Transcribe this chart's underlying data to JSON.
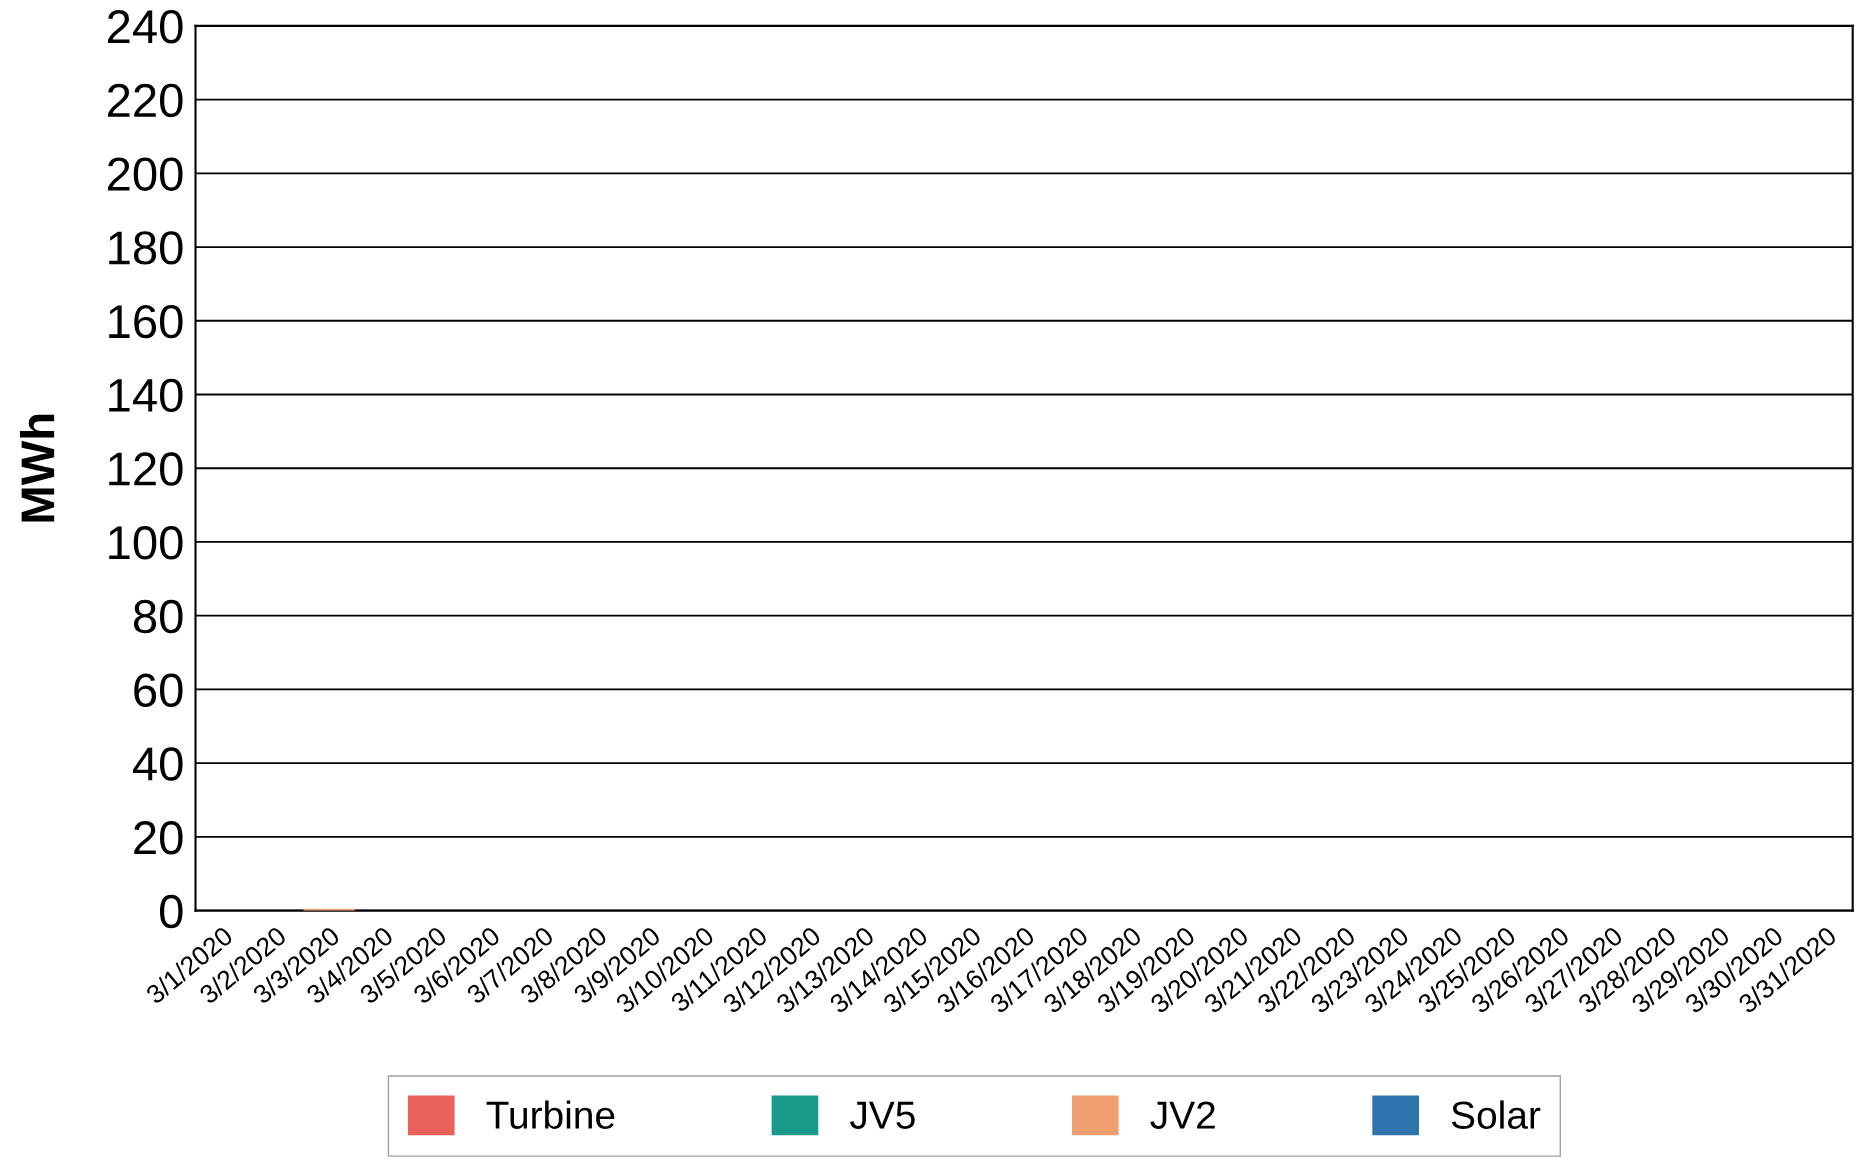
{
  "chart_data": {
    "type": "bar",
    "ylabel": "MWh",
    "categories": [
      "3/1/2020",
      "3/2/2020",
      "3/3/2020",
      "3/4/2020",
      "3/5/2020",
      "3/6/2020",
      "3/7/2020",
      "3/8/2020",
      "3/9/2020",
      "3/10/2020",
      "3/11/2020",
      "3/12/2020",
      "3/13/2020",
      "3/14/2020",
      "3/15/2020",
      "3/16/2020",
      "3/17/2020",
      "3/18/2020",
      "3/19/2020",
      "3/20/2020",
      "3/21/2020",
      "3/22/2020",
      "3/23/2020",
      "3/24/2020",
      "3/25/2020",
      "3/26/2020",
      "3/27/2020",
      "3/28/2020",
      "3/29/2020",
      "3/30/2020",
      "3/31/2020"
    ],
    "series": [
      {
        "name": "Turbine",
        "color": "#e8615a",
        "values": [
          0,
          0,
          0,
          0,
          0,
          0,
          0,
          0,
          0,
          0,
          0,
          0,
          0,
          0,
          0,
          0,
          0,
          0,
          0,
          0,
          0,
          0,
          0,
          0,
          0,
          0,
          0,
          0,
          0,
          0,
          0
        ]
      },
      {
        "name": "JV5",
        "color": "#1a9a8a",
        "values": [
          0,
          0,
          0,
          0,
          0,
          0,
          0,
          0,
          0,
          0,
          0,
          0,
          0,
          0,
          0,
          0,
          0,
          0,
          0,
          0,
          0,
          0,
          0,
          0,
          0,
          0,
          0,
          0,
          0,
          0,
          0
        ]
      },
      {
        "name": "JV2",
        "color": "#f0a070",
        "values": [
          0,
          0,
          0.5,
          0,
          0,
          0,
          0,
          0,
          0,
          0,
          0,
          0,
          0,
          0,
          0,
          0,
          0,
          0,
          0,
          0,
          0,
          0,
          0,
          0,
          0,
          0,
          0,
          0,
          0,
          0,
          0
        ]
      },
      {
        "name": "Solar",
        "color": "#2f74ad",
        "values": [
          0,
          0,
          0,
          0,
          0,
          0,
          0,
          0,
          0,
          0,
          0,
          0,
          0,
          0,
          0,
          0,
          0,
          0,
          0,
          0,
          0,
          0,
          0,
          0,
          0,
          0,
          0,
          0,
          0,
          0,
          0
        ]
      }
    ],
    "ylim": [
      0,
      240
    ],
    "yticks": [
      0,
      20,
      40,
      60,
      80,
      100,
      120,
      140,
      160,
      180,
      200,
      220,
      240
    ],
    "grid": "y",
    "legend": "bottom"
  }
}
